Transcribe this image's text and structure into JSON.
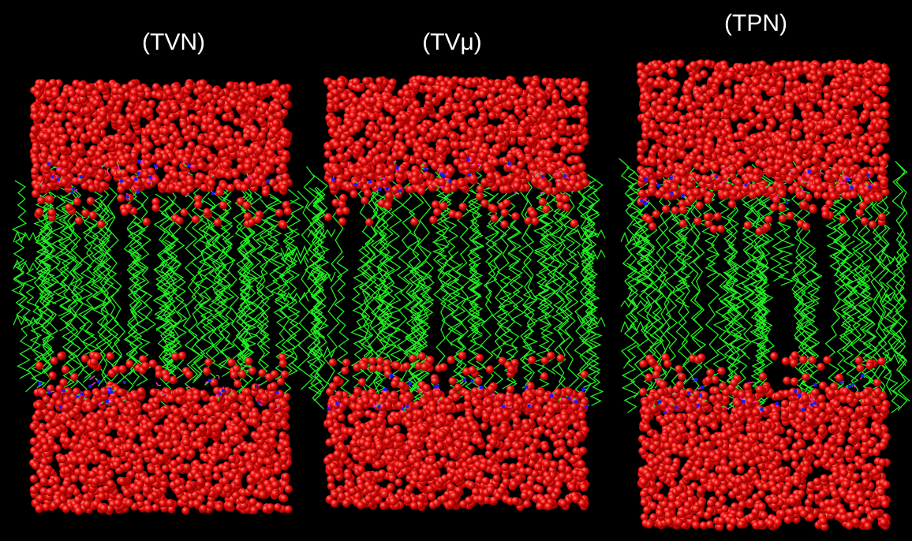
{
  "figure": {
    "panels": [
      {
        "label": "(TVN)"
      },
      {
        "label": "(TVμ)"
      },
      {
        "label": "(TPN)"
      }
    ]
  },
  "colors": {
    "background": "#000000",
    "water": "#e00000",
    "water_highlight": "#ff6a5a",
    "lipid_tail": "#22ee22",
    "phosphate": "#ff22cc",
    "nitrogen": "#1a1aff"
  }
}
